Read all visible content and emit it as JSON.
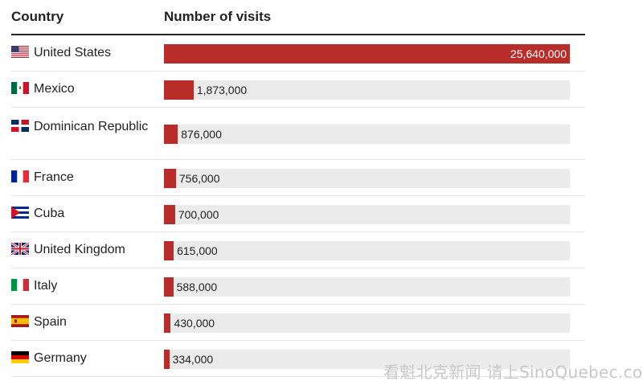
{
  "header": {
    "country": "Country",
    "visits": "Number of visits"
  },
  "chart_data": {
    "type": "bar",
    "orientation": "horizontal",
    "categories": [
      "United States",
      "Mexico",
      "Dominican Republic",
      "France",
      "Cuba",
      "United Kingdom",
      "Italy",
      "Spain",
      "Germany"
    ],
    "values": [
      25640000,
      1873000,
      876000,
      756000,
      700000,
      615000,
      588000,
      430000,
      334000
    ],
    "value_labels": [
      "25,640,000",
      "1,873,000",
      "876,000",
      "756,000",
      "700,000",
      "615,000",
      "588,000",
      "430,000",
      "334,000"
    ],
    "flags": [
      "flag-us-icon",
      "flag-mx-icon",
      "flag-do-icon",
      "flag-fr-icon",
      "flag-cu-icon",
      "flag-gb-icon",
      "flag-it-icon",
      "flag-es-icon",
      "flag-de-icon"
    ],
    "xlim": [
      0,
      25640000
    ],
    "colors": {
      "bar": "#b82d2a",
      "track": "#ebebeb"
    }
  },
  "watermark": "看魁北克新闻 请上SinoQuebec.com"
}
